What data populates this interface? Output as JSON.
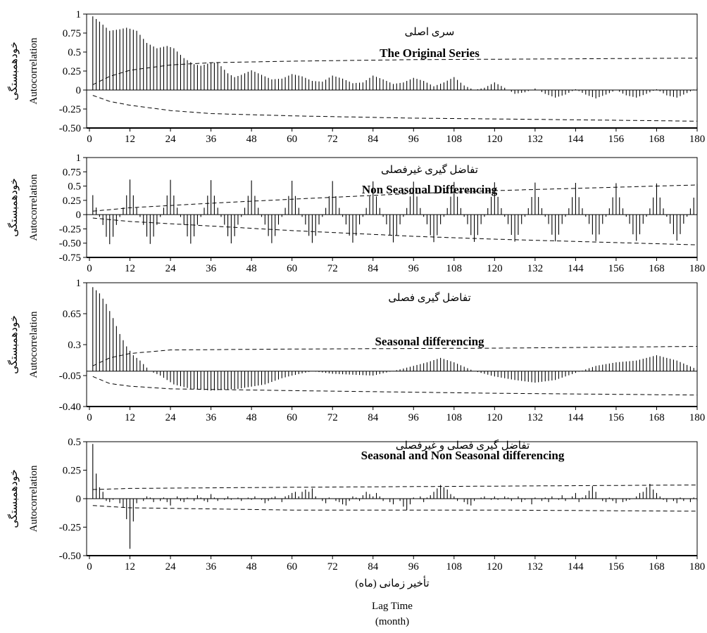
{
  "chart_data": [
    {
      "type": "bar",
      "title_fa": "سری اصلی",
      "title_en": "The Original Series",
      "ylabel_en": "Autocorrelation",
      "ylabel_fa": "خودهمبستگی",
      "ylim": [
        -0.5,
        1
      ],
      "yticks": [
        "1",
        "0.75",
        "0.5",
        "0.25",
        "0",
        "-0.25",
        "-0.50"
      ],
      "ytick_values": [
        1,
        0.75,
        0.5,
        0.25,
        0,
        -0.25,
        -0.5
      ],
      "xlim": [
        0,
        180
      ],
      "xticks": [
        0,
        12,
        24,
        36,
        48,
        60,
        72,
        84,
        96,
        108,
        120,
        132,
        144,
        156,
        168,
        180
      ],
      "conf_upper": [
        [
          1,
          0.07
        ],
        [
          6,
          0.18
        ],
        [
          12,
          0.26
        ],
        [
          24,
          0.33
        ],
        [
          36,
          0.36
        ],
        [
          60,
          0.38
        ],
        [
          96,
          0.4
        ],
        [
          140,
          0.41
        ],
        [
          180,
          0.42
        ]
      ],
      "conf_lower": [
        [
          1,
          -0.07
        ],
        [
          6,
          -0.15
        ],
        [
          12,
          -0.2
        ],
        [
          24,
          -0.27
        ],
        [
          36,
          -0.31
        ],
        [
          60,
          -0.34
        ],
        [
          96,
          -0.37
        ],
        [
          140,
          -0.39
        ],
        [
          180,
          -0.41
        ]
      ],
      "acf_keypoints": [
        [
          1,
          0.97
        ],
        [
          3,
          0.9
        ],
        [
          6,
          0.78
        ],
        [
          9,
          0.8
        ],
        [
          11,
          0.82
        ],
        [
          14,
          0.78
        ],
        [
          17,
          0.62
        ],
        [
          20,
          0.55
        ],
        [
          23,
          0.58
        ],
        [
          25,
          0.55
        ],
        [
          28,
          0.42
        ],
        [
          31,
          0.34
        ],
        [
          33,
          0.32
        ],
        [
          36,
          0.36
        ],
        [
          38,
          0.36
        ],
        [
          41,
          0.22
        ],
        [
          43,
          0.17
        ],
        [
          45,
          0.2
        ],
        [
          48,
          0.26
        ],
        [
          51,
          0.2
        ],
        [
          54,
          0.14
        ],
        [
          57,
          0.15
        ],
        [
          60,
          0.21
        ],
        [
          63,
          0.18
        ],
        [
          66,
          0.12
        ],
        [
          69,
          0.11
        ],
        [
          72,
          0.19
        ],
        [
          75,
          0.15
        ],
        [
          78,
          0.09
        ],
        [
          81,
          0.1
        ],
        [
          84,
          0.19
        ],
        [
          87,
          0.14
        ],
        [
          90,
          0.08
        ],
        [
          93,
          0.1
        ],
        [
          96,
          0.16
        ],
        [
          99,
          0.12
        ],
        [
          102,
          0.05
        ],
        [
          105,
          0.1
        ],
        [
          108,
          0.17
        ],
        [
          111,
          0.06
        ],
        [
          114,
          0.0
        ],
        [
          117,
          0.03
        ],
        [
          120,
          0.1
        ],
        [
          123,
          0.03
        ],
        [
          126,
          -0.05
        ],
        [
          129,
          -0.03
        ],
        [
          132,
          0.02
        ],
        [
          135,
          -0.05
        ],
        [
          138,
          -0.1
        ],
        [
          141,
          -0.06
        ],
        [
          144,
          0.01
        ],
        [
          147,
          -0.06
        ],
        [
          150,
          -0.11
        ],
        [
          153,
          -0.06
        ],
        [
          156,
          0.0
        ],
        [
          159,
          -0.07
        ],
        [
          162,
          -0.1
        ],
        [
          165,
          -0.05
        ],
        [
          168,
          0.01
        ],
        [
          171,
          -0.07
        ],
        [
          174,
          -0.1
        ],
        [
          177,
          -0.04
        ],
        [
          180,
          0.03
        ]
      ]
    },
    {
      "type": "bar",
      "title_fa": "تفاضل گیری غیرفصلی",
      "title_en": "Non Seasonal Differencing",
      "ylabel_en": "Autocorrelation",
      "ylabel_fa": "خودهمبستگی",
      "ylim": [
        -0.75,
        1
      ],
      "yticks": [
        "1",
        "0.75",
        "0.5",
        "0.25",
        "0",
        "-0.25",
        "-0.50",
        "-0.75"
      ],
      "ytick_values": [
        1,
        0.75,
        0.5,
        0.25,
        0,
        -0.25,
        -0.5,
        -0.75
      ],
      "xlim": [
        0,
        180
      ],
      "xticks": [
        0,
        12,
        24,
        36,
        48,
        60,
        72,
        84,
        96,
        108,
        120,
        132,
        144,
        156,
        168,
        180
      ],
      "conf_upper": [
        [
          1,
          0.06
        ],
        [
          12,
          0.12
        ],
        [
          36,
          0.2
        ],
        [
          60,
          0.27
        ],
        [
          96,
          0.37
        ],
        [
          120,
          0.42
        ],
        [
          150,
          0.47
        ],
        [
          180,
          0.52
        ]
      ],
      "conf_lower": [
        [
          1,
          -0.06
        ],
        [
          12,
          -0.12
        ],
        [
          36,
          -0.2
        ],
        [
          60,
          -0.28
        ],
        [
          96,
          -0.38
        ],
        [
          120,
          -0.43
        ],
        [
          150,
          -0.48
        ],
        [
          180,
          -0.53
        ]
      ],
      "seasonal_peak": 0.62,
      "seasonal_trough": -0.52,
      "season_period": 12
    },
    {
      "type": "bar",
      "title_fa": "تفاضل گیری فصلی",
      "title_en": "Seasonal differencing",
      "ylabel_en": "Autocorrelation",
      "ylabel_fa": "خودهمبستگی",
      "ylim": [
        -0.4,
        1
      ],
      "yticks": [
        "1",
        "0.65",
        "0.3",
        "-0.05",
        "-0.40"
      ],
      "ytick_values": [
        1,
        0.65,
        0.3,
        -0.05,
        -0.4
      ],
      "xlim": [
        0,
        180
      ],
      "xticks": [
        0,
        12,
        24,
        36,
        48,
        60,
        72,
        84,
        96,
        108,
        120,
        132,
        144,
        156,
        168,
        180
      ],
      "conf_upper": [
        [
          1,
          0.06
        ],
        [
          6,
          0.15
        ],
        [
          12,
          0.2
        ],
        [
          24,
          0.24
        ],
        [
          60,
          0.25
        ],
        [
          120,
          0.26
        ],
        [
          180,
          0.28
        ]
      ],
      "conf_lower": [
        [
          1,
          -0.06
        ],
        [
          6,
          -0.14
        ],
        [
          12,
          -0.17
        ],
        [
          24,
          -0.2
        ],
        [
          60,
          -0.22
        ],
        [
          120,
          -0.25
        ],
        [
          180,
          -0.27
        ]
      ],
      "acf_keypoints": [
        [
          1,
          0.95
        ],
        [
          3,
          0.88
        ],
        [
          5,
          0.76
        ],
        [
          7,
          0.6
        ],
        [
          9,
          0.42
        ],
        [
          11,
          0.28
        ],
        [
          13,
          0.18
        ],
        [
          15,
          0.12
        ],
        [
          18,
          0.0
        ],
        [
          21,
          -0.05
        ],
        [
          25,
          -0.15
        ],
        [
          30,
          -0.2
        ],
        [
          36,
          -0.22
        ],
        [
          44,
          -0.2
        ],
        [
          52,
          -0.15
        ],
        [
          57,
          -0.08
        ],
        [
          60,
          -0.05
        ],
        [
          66,
          0.0
        ],
        [
          72,
          -0.03
        ],
        [
          84,
          -0.05
        ],
        [
          92,
          0.02
        ],
        [
          100,
          0.1
        ],
        [
          104,
          0.15
        ],
        [
          108,
          0.1
        ],
        [
          114,
          0.0
        ],
        [
          120,
          -0.06
        ],
        [
          126,
          -0.1
        ],
        [
          132,
          -0.13
        ],
        [
          138,
          -0.1
        ],
        [
          144,
          -0.02
        ],
        [
          150,
          0.06
        ],
        [
          156,
          0.1
        ],
        [
          162,
          0.12
        ],
        [
          168,
          0.18
        ],
        [
          174,
          0.12
        ],
        [
          180,
          0.02
        ]
      ]
    },
    {
      "type": "bar",
      "title_fa": "تفاضل گیری فصلی و غیرفصلی",
      "title_en": "Seasonal and Non Seasonal differencing",
      "ylabel_en": "Autocorrelation",
      "ylabel_fa": "خودهمبستگی",
      "xlabel_fa": "تأخیر زمانی (ماه)",
      "xlabel_en_1": "Lag Time",
      "xlabel_en_2": "(month)",
      "ylim": [
        -0.5,
        0.5
      ],
      "yticks": [
        "0.5",
        "0.25",
        "0",
        "-0.25",
        "-0.50"
      ],
      "ytick_values": [
        0.5,
        0.25,
        0,
        -0.25,
        -0.5
      ],
      "xlim": [
        0,
        180
      ],
      "xticks": [
        0,
        12,
        24,
        36,
        48,
        60,
        72,
        84,
        96,
        108,
        120,
        132,
        144,
        156,
        168,
        180
      ],
      "conf_upper": [
        [
          1,
          0.08
        ],
        [
          12,
          0.09
        ],
        [
          60,
          0.1
        ],
        [
          120,
          0.11
        ],
        [
          180,
          0.12
        ]
      ],
      "conf_lower": [
        [
          1,
          -0.06
        ],
        [
          12,
          -0.08
        ],
        [
          60,
          -0.1
        ],
        [
          120,
          -0.1
        ],
        [
          180,
          -0.11
        ]
      ],
      "acf_values": [
        0.48,
        0.22,
        0.1,
        0.06,
        -0.02,
        -0.03,
        -0.01,
        0.0,
        -0.04,
        -0.08,
        -0.18,
        -0.44,
        -0.2,
        -0.04,
        0.0,
        -0.02,
        0.02,
        0.01,
        -0.03,
        0.0,
        -0.02,
        0.01,
        -0.03,
        -0.06,
        0.0,
        0.02,
        -0.02,
        -0.03,
        0.01,
        0.0,
        -0.02,
        0.03,
        0.01,
        -0.02,
        -0.03,
        0.04,
        0.01,
        -0.02,
        0.0,
        -0.01,
        0.02,
        -0.01,
        0.0,
        0.01,
        -0.02,
        0.0,
        0.01,
        -0.01,
        0.02,
        0.0,
        -0.01,
        -0.04,
        -0.02,
        0.01,
        0.02,
        0.0,
        -0.03,
        0.02,
        0.03,
        0.05,
        0.06,
        0.02,
        0.06,
        0.08,
        0.06,
        0.09,
        0.02,
        0.0,
        -0.02,
        -0.04,
        0.01,
        0.0,
        -0.02,
        -0.03,
        -0.05,
        -0.06,
        -0.02,
        0.02,
        0.01,
        -0.02,
        0.03,
        0.06,
        0.04,
        0.02,
        0.05,
        0.02,
        -0.02,
        0.0,
        -0.03,
        -0.05,
        0.0,
        -0.02,
        -0.07,
        -0.1,
        -0.05,
        0.01,
        0.0,
        0.02,
        -0.03,
        0.01,
        0.03,
        0.06,
        0.09,
        0.12,
        0.1,
        0.08,
        0.04,
        0.02,
        -0.02,
        0.0,
        -0.03,
        -0.05,
        -0.06,
        -0.02,
        0.0,
        0.01,
        0.02,
        0.0,
        -0.01,
        0.02,
        -0.01,
        0.0,
        0.02,
        0.01,
        -0.02,
        0.0,
        0.02,
        -0.03,
        -0.01,
        0.0,
        -0.05,
        0.01,
        0.0,
        -0.02,
        0.01,
        -0.03,
        0.02,
        0.0,
        -0.01,
        0.03,
        -0.02,
        0.0,
        0.02,
        0.05,
        -0.03,
        0.01,
        0.03,
        0.07,
        0.11,
        0.06,
        0.0,
        -0.02,
        -0.03,
        0.01,
        -0.02,
        -0.04,
        0.0,
        -0.03,
        -0.02,
        -0.01,
        0.0,
        0.02,
        0.05,
        0.06,
        0.1,
        0.13,
        0.08,
        0.05,
        0.02,
        -0.01,
        -0.03,
        0.0,
        -0.02,
        -0.04,
        0.01,
        -0.02,
        0.0,
        -0.03,
        0.01,
        -0.02,
        -0.04
      ]
    }
  ]
}
